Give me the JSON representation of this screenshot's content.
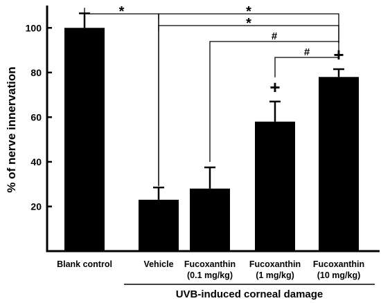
{
  "chart_data": {
    "type": "bar",
    "ylabel": "% of nerve innervation",
    "ylim": [
      0,
      110
    ],
    "yticks": [
      20,
      40,
      60,
      80,
      100
    ],
    "categories": [
      [
        "Blank control"
      ],
      [
        "Vehicle"
      ],
      [
        "Fucoxanthin",
        "(0.1 mg/kg)"
      ],
      [
        "Fucoxanthin",
        "(1 mg/kg)"
      ],
      [
        "Fucoxanthin",
        "(10 mg/kg)"
      ]
    ],
    "values": [
      100,
      23,
      28,
      58,
      78
    ],
    "errors": [
      6.5,
      5.5,
      9.5,
      9,
      3.5
    ],
    "bar_color": "#000000",
    "group_label": "UVB-induced corneal damage",
    "group_span": [
      1,
      4
    ],
    "plus_marks": [
      3,
      4
    ],
    "plus_symbol": "+",
    "brackets": [
      {
        "from": 0,
        "to": 1,
        "symbol": "*"
      },
      {
        "from": 1,
        "to": 4,
        "symbol": "*"
      },
      {
        "from": 1,
        "to": 4,
        "symbol": "*"
      },
      {
        "from": 2,
        "to": 4,
        "symbol": "#"
      },
      {
        "from": 3,
        "to": 4,
        "symbol": "#"
      }
    ]
  }
}
